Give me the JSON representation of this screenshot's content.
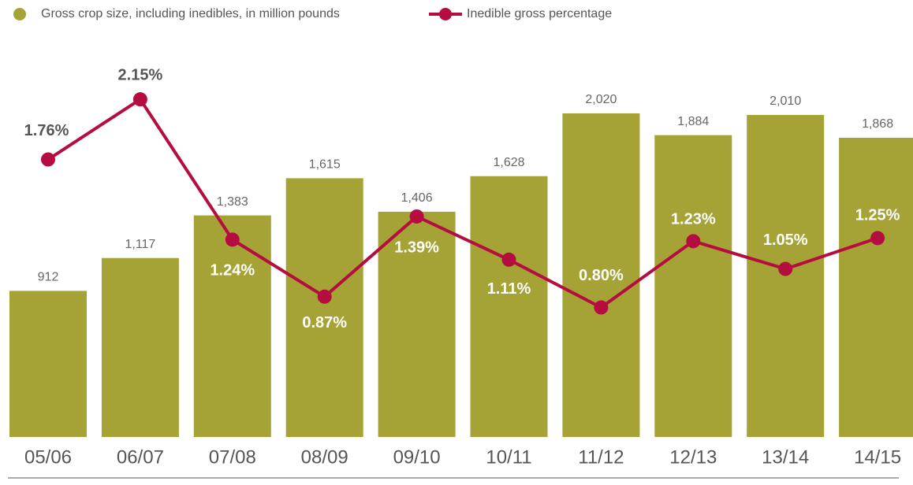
{
  "chart_data": {
    "type": "bar",
    "categories": [
      "05/06",
      "06/07",
      "07/08",
      "08/09",
      "09/10",
      "10/11",
      "11/12",
      "12/13",
      "13/14",
      "14/15"
    ],
    "series": [
      {
        "name": "Gross crop size, including inedibles, in million pounds",
        "type": "bar",
        "color": "#a5a336",
        "values": [
          912,
          1117,
          1383,
          1615,
          1406,
          1628,
          2020,
          1884,
          2010,
          1868
        ],
        "value_labels": [
          "912",
          "1,117",
          "1,383",
          "1,615",
          "1,406",
          "1,628",
          "2,020",
          "1,884",
          "2,010",
          "1,868"
        ]
      },
      {
        "name": "Inedible gross percentage",
        "type": "line",
        "axis": "y2",
        "color": "#b50d40",
        "values": [
          1.76,
          2.15,
          1.24,
          0.87,
          1.39,
          1.11,
          0.8,
          1.23,
          1.05,
          1.25
        ],
        "value_labels": [
          "1.76%",
          "2.15%",
          "1.24%",
          "0.87%",
          "1.39%",
          "1.11%",
          "0.80%",
          "1.23%",
          "1.05%",
          "1.25%"
        ]
      }
    ],
    "ylim": [
      0,
      2300
    ],
    "y2lim": [
      -0.04,
      2.35
    ],
    "legend": "top-left"
  }
}
